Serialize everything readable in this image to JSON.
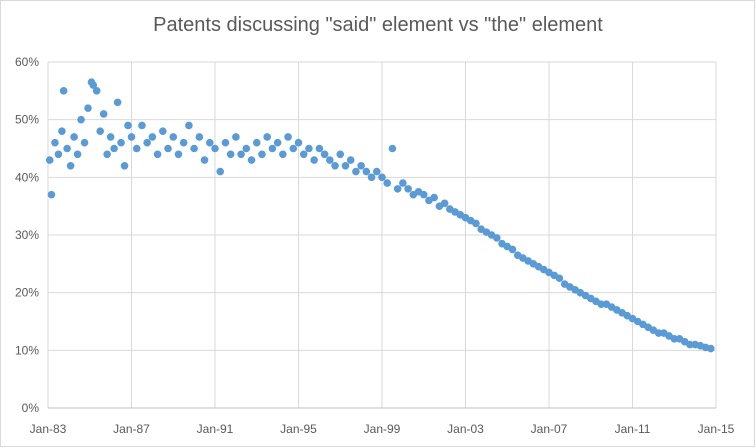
{
  "chart_data": {
    "type": "scatter",
    "title": "Patents discussing \"said\" element vs \"the\" element",
    "xlabel": "",
    "ylabel": "",
    "x_axis": {
      "min": "1983-01",
      "max": "2015-01",
      "tick_labels": [
        "Jan-83",
        "Jan-87",
        "Jan-91",
        "Jan-95",
        "Jan-99",
        "Jan-03",
        "Jan-07",
        "Jan-11",
        "Jan-15"
      ]
    },
    "y_axis": {
      "min": 0,
      "max": 0.6,
      "tick_labels": [
        "0%",
        "10%",
        "20%",
        "30%",
        "40%",
        "50%",
        "60%"
      ],
      "format": "percent"
    },
    "grid": true,
    "legend": "none",
    "color": "#5b9bd5",
    "points": [
      [
        "1983-02",
        0.43
      ],
      [
        "1983-03",
        0.37
      ],
      [
        "1983-05",
        0.46
      ],
      [
        "1983-07",
        0.44
      ],
      [
        "1983-09",
        0.48
      ],
      [
        "1983-10",
        0.55
      ],
      [
        "1983-12",
        0.45
      ],
      [
        "1984-02",
        0.42
      ],
      [
        "1984-04",
        0.47
      ],
      [
        "1984-06",
        0.44
      ],
      [
        "1984-08",
        0.5
      ],
      [
        "1984-10",
        0.46
      ],
      [
        "1984-12",
        0.52
      ],
      [
        "1985-02",
        0.565
      ],
      [
        "1985-03",
        0.56
      ],
      [
        "1985-05",
        0.55
      ],
      [
        "1985-07",
        0.48
      ],
      [
        "1985-09",
        0.51
      ],
      [
        "1985-11",
        0.44
      ],
      [
        "1986-01",
        0.47
      ],
      [
        "1986-03",
        0.45
      ],
      [
        "1986-05",
        0.53
      ],
      [
        "1986-07",
        0.46
      ],
      [
        "1986-09",
        0.42
      ],
      [
        "1986-11",
        0.49
      ],
      [
        "1987-01",
        0.47
      ],
      [
        "1987-04",
        0.45
      ],
      [
        "1987-07",
        0.49
      ],
      [
        "1987-10",
        0.46
      ],
      [
        "1988-01",
        0.47
      ],
      [
        "1988-04",
        0.44
      ],
      [
        "1988-07",
        0.48
      ],
      [
        "1988-10",
        0.45
      ],
      [
        "1989-01",
        0.47
      ],
      [
        "1989-04",
        0.44
      ],
      [
        "1989-07",
        0.46
      ],
      [
        "1989-10",
        0.49
      ],
      [
        "1990-01",
        0.45
      ],
      [
        "1990-04",
        0.47
      ],
      [
        "1990-07",
        0.43
      ],
      [
        "1990-10",
        0.46
      ],
      [
        "1991-01",
        0.45
      ],
      [
        "1991-04",
        0.41
      ],
      [
        "1991-07",
        0.46
      ],
      [
        "1991-10",
        0.44
      ],
      [
        "1992-01",
        0.47
      ],
      [
        "1992-04",
        0.44
      ],
      [
        "1992-07",
        0.45
      ],
      [
        "1992-10",
        0.43
      ],
      [
        "1993-01",
        0.46
      ],
      [
        "1993-04",
        0.44
      ],
      [
        "1993-07",
        0.47
      ],
      [
        "1993-10",
        0.45
      ],
      [
        "1994-01",
        0.46
      ],
      [
        "1994-04",
        0.44
      ],
      [
        "1994-07",
        0.47
      ],
      [
        "1994-10",
        0.45
      ],
      [
        "1995-01",
        0.46
      ],
      [
        "1995-04",
        0.44
      ],
      [
        "1995-07",
        0.45
      ],
      [
        "1995-10",
        0.43
      ],
      [
        "1996-01",
        0.45
      ],
      [
        "1996-04",
        0.44
      ],
      [
        "1996-07",
        0.43
      ],
      [
        "1996-10",
        0.42
      ],
      [
        "1997-01",
        0.44
      ],
      [
        "1997-04",
        0.42
      ],
      [
        "1997-07",
        0.43
      ],
      [
        "1997-10",
        0.41
      ],
      [
        "1998-01",
        0.42
      ],
      [
        "1998-04",
        0.41
      ],
      [
        "1998-07",
        0.4
      ],
      [
        "1998-10",
        0.41
      ],
      [
        "1999-01",
        0.4
      ],
      [
        "1999-04",
        0.39
      ],
      [
        "1999-07",
        0.45
      ],
      [
        "1999-10",
        0.38
      ],
      [
        "2000-01",
        0.39
      ],
      [
        "2000-04",
        0.38
      ],
      [
        "2000-07",
        0.37
      ],
      [
        "2000-10",
        0.375
      ],
      [
        "2001-01",
        0.37
      ],
      [
        "2001-04",
        0.36
      ],
      [
        "2001-07",
        0.365
      ],
      [
        "2001-10",
        0.35
      ],
      [
        "2002-01",
        0.355
      ],
      [
        "2002-04",
        0.345
      ],
      [
        "2002-07",
        0.34
      ],
      [
        "2002-10",
        0.335
      ],
      [
        "2003-01",
        0.33
      ],
      [
        "2003-04",
        0.325
      ],
      [
        "2003-07",
        0.32
      ],
      [
        "2003-10",
        0.31
      ],
      [
        "2004-01",
        0.305
      ],
      [
        "2004-04",
        0.3
      ],
      [
        "2004-07",
        0.295
      ],
      [
        "2004-10",
        0.285
      ],
      [
        "2005-01",
        0.28
      ],
      [
        "2005-04",
        0.275
      ],
      [
        "2005-07",
        0.265
      ],
      [
        "2005-10",
        0.26
      ],
      [
        "2006-01",
        0.255
      ],
      [
        "2006-04",
        0.25
      ],
      [
        "2006-07",
        0.245
      ],
      [
        "2006-10",
        0.24
      ],
      [
        "2007-01",
        0.235
      ],
      [
        "2007-04",
        0.23
      ],
      [
        "2007-07",
        0.225
      ],
      [
        "2007-10",
        0.215
      ],
      [
        "2008-01",
        0.21
      ],
      [
        "2008-04",
        0.205
      ],
      [
        "2008-07",
        0.2
      ],
      [
        "2008-10",
        0.195
      ],
      [
        "2009-01",
        0.19
      ],
      [
        "2009-04",
        0.185
      ],
      [
        "2009-07",
        0.18
      ],
      [
        "2009-10",
        0.18
      ],
      [
        "2010-01",
        0.175
      ],
      [
        "2010-04",
        0.17
      ],
      [
        "2010-07",
        0.165
      ],
      [
        "2010-10",
        0.16
      ],
      [
        "2011-01",
        0.155
      ],
      [
        "2011-04",
        0.15
      ],
      [
        "2011-07",
        0.145
      ],
      [
        "2011-10",
        0.14
      ],
      [
        "2012-01",
        0.135
      ],
      [
        "2012-04",
        0.13
      ],
      [
        "2012-07",
        0.13
      ],
      [
        "2012-10",
        0.125
      ],
      [
        "2013-01",
        0.12
      ],
      [
        "2013-04",
        0.12
      ],
      [
        "2013-07",
        0.115
      ],
      [
        "2013-10",
        0.11
      ],
      [
        "2014-01",
        0.11
      ],
      [
        "2014-04",
        0.108
      ],
      [
        "2014-07",
        0.105
      ],
      [
        "2014-10",
        0.103
      ]
    ]
  }
}
